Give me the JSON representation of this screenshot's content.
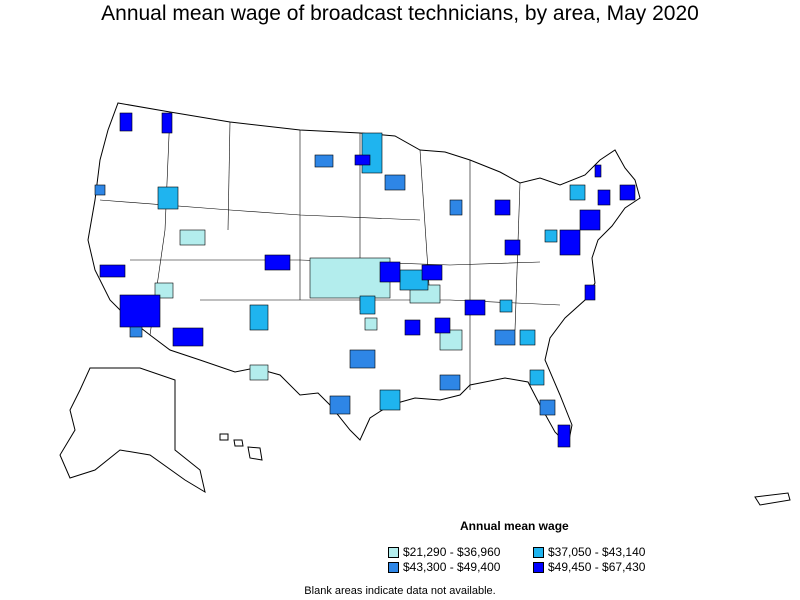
{
  "title": "Annual mean wage of broadcast technicians, by area, May 2020",
  "legend": {
    "title": "Annual mean wage",
    "items": [
      {
        "label": "$21,290 - $36,960",
        "color": "#b3eded"
      },
      {
        "label": "$37,050 - $43,140",
        "color": "#1fb4ef"
      },
      {
        "label": "$43,300 - $49,400",
        "color": "#2e86e6"
      },
      {
        "label": "$49,450 - $67,430",
        "color": "#0000ff"
      }
    ]
  },
  "note": "Blank areas indicate data not available."
}
